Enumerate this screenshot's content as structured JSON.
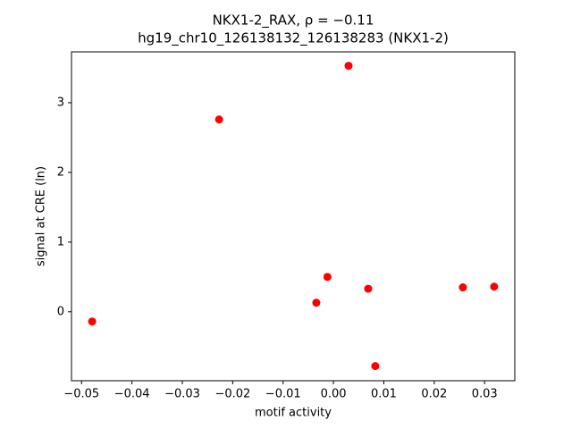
{
  "chart_data": {
    "type": "scatter",
    "title_lines": [
      "NKX1-2_RAX, ρ = −0.11",
      "hg19_chr10_126138132_126138283 (NKX1-2)"
    ],
    "x_label": "motif activity",
    "y_label": "signal at CRE (ln)",
    "x": [
      -0.0479,
      -0.0227,
      0.003,
      -0.0012,
      -0.0034,
      0.0069,
      0.0083,
      0.0257,
      0.0319
    ],
    "values": [
      -0.14,
      2.76,
      3.53,
      0.5,
      0.13,
      0.33,
      -0.78,
      0.35,
      0.36
    ],
    "color": "#ff0000",
    "xlim": [
      -0.052,
      0.036
    ],
    "ylim": [
      -0.99,
      3.73
    ],
    "xticks": [
      {
        "value": -0.05,
        "label": "−0.05"
      },
      {
        "value": -0.04,
        "label": "−0.04"
      },
      {
        "value": -0.03,
        "label": "−0.03"
      },
      {
        "value": -0.02,
        "label": "−0.02"
      },
      {
        "value": -0.01,
        "label": "−0.01"
      },
      {
        "value": 0,
        "label": "0.00"
      },
      {
        "value": 0.01,
        "label": "0.01"
      },
      {
        "value": 0.02,
        "label": "0.02"
      },
      {
        "value": 0.03,
        "label": "0.03"
      }
    ],
    "yticks": [
      0,
      1,
      2,
      3
    ],
    "grid": false
  }
}
